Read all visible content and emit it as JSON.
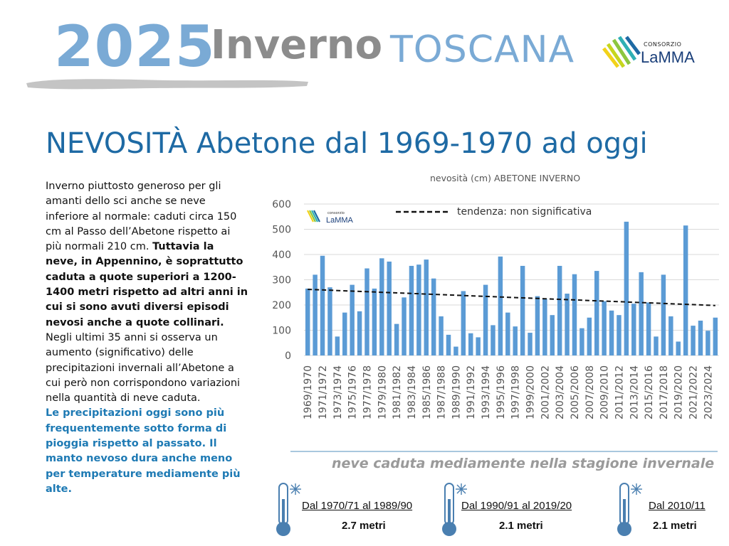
{
  "header": {
    "year": "2025",
    "season": "Inverno",
    "region": "TOSCANA",
    "logo_small": "CONSORZIO",
    "logo_name": "LaMMA"
  },
  "title": "NEVOSITÀ Abetone dal 1969-1970 ad oggi",
  "left_text": {
    "p1": "Inverno piuttosto generoso per gli amanti dello sci anche se neve inferiore al normale: caduti circa 150 cm al Passo dell’Abetone rispetto ai più normali 210 cm.",
    "p2_bold": "Tuttavia la neve, in Appennino, è soprattutto caduta a quote superiori a 1200-1400 metri rispetto ad altri anni in cui si sono avuti diversi episodi nevosi anche a quote collinari.",
    "p3": "Negli ultimi 35 anni si osserva un aumento (significativo) delle precipitazioni invernali all’Abetone a cui però non corrispondono variazioni nella quantità di neve caduta.",
    "p4_blue": "Le precipitazioni oggi sono più frequentemente sotto forma di pioggia rispetto al passato.  Il manto nevoso dura anche meno per temperature mediamente più alte."
  },
  "chart_data": {
    "type": "bar",
    "title": "nevosità (cm) ABETONE INVERNO",
    "watermark_small": "consorzio",
    "watermark_name": "LaMMA",
    "trend_label": "tendenza: non significativa",
    "trend_start": 262,
    "trend_end": 198,
    "ylim": [
      0,
      600
    ],
    "yticks": [
      0,
      100,
      200,
      300,
      400,
      500,
      600
    ],
    "xtick_labels": [
      "1969/1970",
      "1971/1972",
      "1973/1974",
      "1975/1976",
      "1977/1978",
      "1979/1980",
      "1981/1982",
      "1983/1984",
      "1985/1986",
      "1987/1988",
      "1989/1990",
      "1991/1992",
      "1993/1994",
      "1995/1996",
      "1997/1998",
      "1999/2000",
      "2001/2002",
      "2003/2004",
      "2005/2006",
      "2007/2008",
      "2009/2010",
      "2011/2012",
      "2013/2014",
      "2015/2016",
      "2017/2018",
      "2019/2020",
      "2021/2022",
      "2023/2024"
    ],
    "values": [
      265,
      320,
      395,
      270,
      75,
      170,
      280,
      175,
      345,
      265,
      385,
      372,
      125,
      230,
      355,
      360,
      380,
      305,
      155,
      82,
      35,
      255,
      88,
      72,
      280,
      120,
      392,
      170,
      115,
      355,
      90,
      235,
      225,
      160,
      355,
      245,
      322,
      108,
      150,
      335,
      215,
      178,
      160,
      530,
      205,
      330,
      210,
      75,
      320,
      155,
      55,
      515,
      118,
      138,
      98,
      150
    ],
    "grid": true,
    "bar_color": "#5b9bd5"
  },
  "bottom": {
    "title": "neve caduta mediamente nella stagione invernale",
    "stats": [
      {
        "period": "Dal 1970/71 al 1989/90",
        "value": "2.7 metri"
      },
      {
        "period": "Dal 1990/91 al 2019/20",
        "value": "2.1 metri"
      },
      {
        "period": "Dal 2010/11",
        "value": "2.1 metri"
      }
    ],
    "icon": "thermometer-snowflake-icon"
  },
  "colors": {
    "accent_blue": "#1e6aa4",
    "light_blue": "#7aaad5",
    "grey": "#8c8c8c"
  }
}
